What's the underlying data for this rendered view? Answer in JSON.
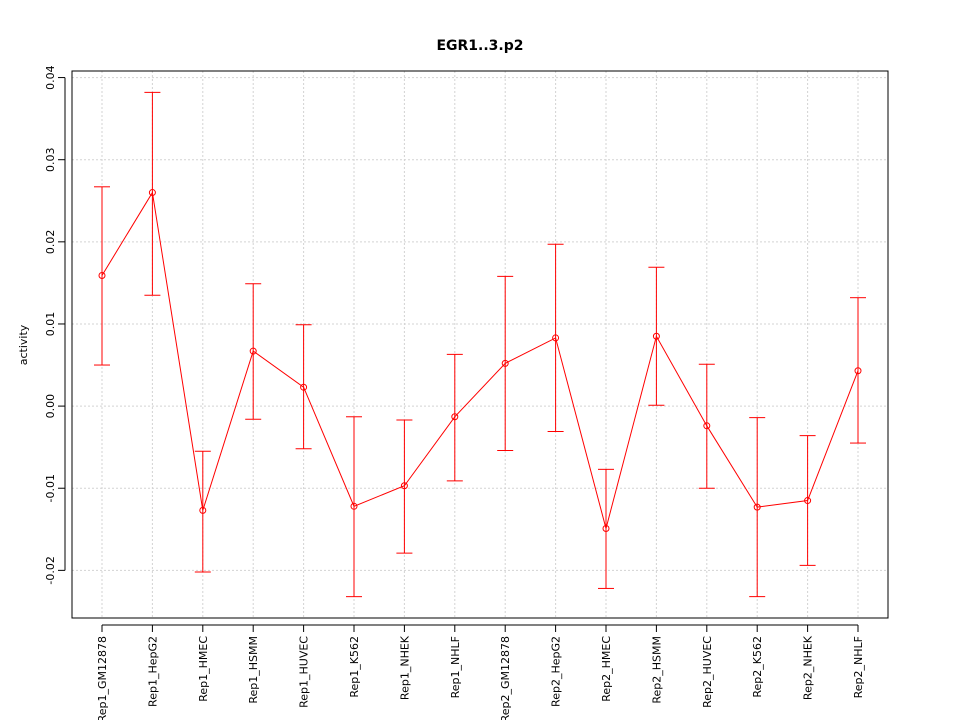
{
  "chart_data": {
    "type": "line",
    "title": "EGR1..3.p2",
    "xlabel": "",
    "ylabel": "activity",
    "ylim": [
      -0.0258,
      0.0408
    ],
    "yticks": [
      -0.02,
      -0.01,
      0.0,
      0.01,
      0.02,
      0.03,
      0.04
    ],
    "ytick_labels": [
      "-0.02",
      "-0.01",
      "0.00",
      "0.01",
      "0.02",
      "0.03",
      "0.04"
    ],
    "grid": true,
    "color": "#ff0000",
    "categories": [
      "Rep1_GM12878",
      "Rep1_HepG2",
      "Rep1_HMEC",
      "Rep1_HSMM",
      "Rep1_HUVEC",
      "Rep1_K562",
      "Rep1_NHEK",
      "Rep1_NHLF",
      "Rep2_GM12878",
      "Rep2_HepG2",
      "Rep2_HMEC",
      "Rep2_HSMM",
      "Rep2_HUVEC",
      "Rep2_K562",
      "Rep2_NHEK",
      "Rep2_NHLF"
    ],
    "values": [
      0.0159,
      0.026,
      -0.0127,
      0.0067,
      0.0023,
      -0.0122,
      -0.0097,
      -0.0013,
      0.0052,
      0.0083,
      -0.0149,
      0.0085,
      -0.0024,
      -0.0123,
      -0.0115,
      0.0043
    ],
    "upper": [
      0.0267,
      0.0382,
      -0.0055,
      0.0149,
      0.0099,
      -0.0013,
      -0.0017,
      0.0063,
      0.0158,
      0.0197,
      -0.0077,
      0.0169,
      0.0051,
      -0.0014,
      -0.0036,
      0.0132
    ],
    "lower": [
      0.005,
      0.0135,
      -0.0202,
      -0.0016,
      -0.0052,
      -0.0232,
      -0.0179,
      -0.0091,
      -0.0054,
      -0.0031,
      -0.0222,
      0.0001,
      -0.01,
      -0.0232,
      -0.0194,
      -0.0045
    ]
  }
}
